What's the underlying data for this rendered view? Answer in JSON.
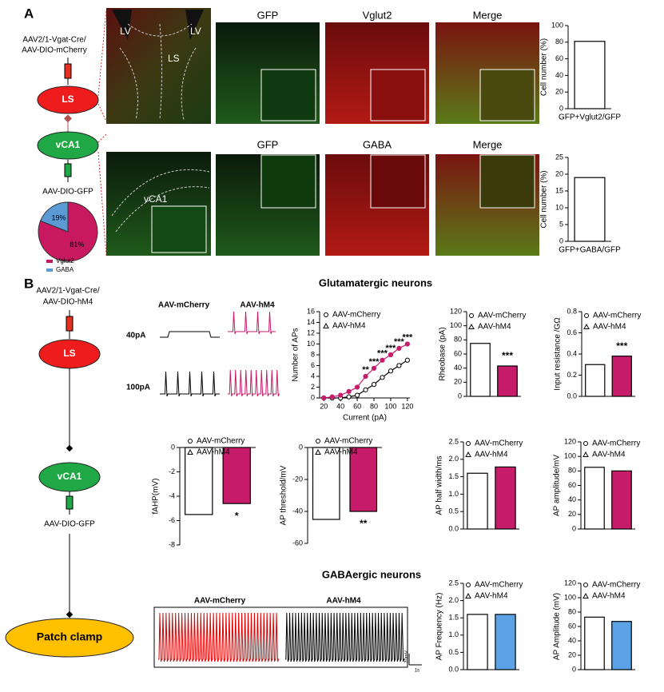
{
  "panel_a": {
    "label": "A",
    "vector": [
      "AAV2/1-Vgat-Cre/",
      "AAV-DIO-mCherry"
    ],
    "target": "LS",
    "source": "vCA1",
    "reporter": "AAV-DIO-GFP",
    "overview_labels": [
      "LV",
      "LV",
      "LS"
    ],
    "row1": [
      "GFP",
      "Vglut2",
      "Merge"
    ],
    "row2": [
      "GFP",
      "GABA",
      "Merge"
    ],
    "overview2_label": "vCA1"
  },
  "panel_b": {
    "label": "B",
    "vector": [
      "AAV2/1-Vgat-Cre/",
      "AAV-DIO-hM4"
    ],
    "target": "LS",
    "source": "vCA1",
    "reporter": "AAV-DIO-GFP",
    "recording": "Patch clamp",
    "glutamatergic_title": "Glutamatergic neurons",
    "gaba_title": "GABAergic neurons",
    "trace_groups": [
      "AAV-mCherry",
      "AAV-hM4"
    ],
    "currents": [
      "40pA",
      "100pA"
    ],
    "gaba_traces": [
      "AAV-mCherry",
      "AAV-hM4"
    ],
    "scale_bars": [
      "20mV",
      "1s"
    ]
  },
  "chart_data": [
    {
      "type": "bar",
      "ylabel": "Cell number (%)",
      "categories": [
        "GFP+Vglut2/GFP"
      ],
      "values": [
        81
      ],
      "color": "#ffffff",
      "ylim": [
        0,
        100
      ],
      "yticks": [
        0,
        20,
        40,
        60,
        80,
        100
      ]
    },
    {
      "type": "bar",
      "ylabel": "Cell number (%)",
      "categories": [
        "GFP+GABA/GFP"
      ],
      "values": [
        19
      ],
      "color": "#ffffff",
      "ylim": [
        0,
        25
      ],
      "yticks": [
        0,
        5,
        10,
        15,
        20,
        25
      ]
    },
    {
      "type": "pie",
      "categories": [
        "Vglut2",
        "GABA"
      ],
      "values": [
        81,
        19
      ],
      "value_labels": [
        "81%",
        "19%"
      ],
      "colors": [
        "#c8185f",
        "#5b9bd5"
      ]
    },
    {
      "type": "line",
      "xlabel": "Current (pA)",
      "ylabel": "Number of APs",
      "x": [
        20,
        30,
        40,
        50,
        60,
        70,
        80,
        90,
        100,
        110,
        120
      ],
      "series": [
        {
          "name": "AAV-mCherry",
          "color": "#000000",
          "values": [
            0,
            0,
            0,
            0.2,
            0.5,
            1.5,
            2.5,
            3.8,
            5,
            6,
            7
          ]
        },
        {
          "name": "AAV-hM4",
          "color": "#c71c6a",
          "values": [
            0,
            0.2,
            0.5,
            1.2,
            2,
            4,
            5.5,
            7,
            8,
            9.2,
            10
          ]
        }
      ],
      "significance": [
        null,
        null,
        null,
        null,
        null,
        "**",
        "***",
        "***",
        "***",
        "***",
        "***"
      ],
      "xlim": [
        15,
        123
      ],
      "xticks": [
        20,
        40,
        60,
        80,
        100,
        120
      ],
      "ylim": [
        0,
        16
      ],
      "yticks": [
        0,
        2,
        4,
        6,
        8,
        10,
        12,
        14,
        16
      ]
    },
    {
      "type": "bar",
      "ylabel": "Rheobase (pA)",
      "series": [
        {
          "name": "AAV-mCherry",
          "color": "#ffffff",
          "values": [
            75
          ]
        },
        {
          "name": "AAV-hM4",
          "color": "#c71c6a",
          "values": [
            43
          ],
          "significance": "***"
        }
      ],
      "ylim": [
        0,
        120
      ],
      "yticks": [
        0,
        20,
        40,
        60,
        80,
        100,
        120
      ]
    },
    {
      "type": "bar",
      "ylabel": "Input resistance /GΩ",
      "series": [
        {
          "name": "AAV-mCherry",
          "color": "#ffffff",
          "values": [
            0.3
          ]
        },
        {
          "name": "AAV-hM4",
          "color": "#c71c6a",
          "values": [
            0.38
          ],
          "significance": "***"
        }
      ],
      "ylim": [
        0,
        0.8
      ],
      "yticks": [
        {
          "value": 0,
          "label": "0.0"
        },
        0.2,
        0.4,
        0.6,
        0.8
      ]
    },
    {
      "type": "bar",
      "ylabel": "fAHP(mV)",
      "series": [
        {
          "name": "AAV-mCherry",
          "color": "#ffffff",
          "values": [
            -5.5
          ]
        },
        {
          "name": "AAV-hM4",
          "color": "#c71c6a",
          "values": [
            -4.6
          ],
          "significance": "*"
        }
      ],
      "ylim": [
        -8,
        0
      ],
      "yticks": [
        0,
        -2,
        -4,
        -6,
        -8
      ]
    },
    {
      "type": "bar",
      "ylabel": "AP threshold/mV",
      "series": [
        {
          "name": "AAV-mCherry",
          "color": "#ffffff",
          "values": [
            -45
          ]
        },
        {
          "name": "AAV-hM4",
          "color": "#c71c6a",
          "values": [
            -40
          ],
          "significance": "**"
        }
      ],
      "ylim": [
        -60,
        0
      ],
      "yticks": [
        0,
        -20,
        -40,
        -60
      ]
    },
    {
      "type": "bar",
      "ylabel": "AP half width/ms",
      "series": [
        {
          "name": "AAV-mCherry",
          "color": "#ffffff",
          "values": [
            1.6
          ]
        },
        {
          "name": "AAV-hM4",
          "color": "#c71c6a",
          "values": [
            1.78
          ]
        }
      ],
      "ylim": [
        0,
        2.5
      ],
      "yticks": [
        {
          "value": 0,
          "label": "0.0"
        },
        0.5,
        {
          "value": 1,
          "label": "1.0"
        },
        1.5,
        {
          "value": 2,
          "label": "2.0"
        },
        2.5
      ]
    },
    {
      "type": "bar",
      "ylabel": "AP amplitude/mV",
      "series": [
        {
          "name": "AAV-mCherry",
          "color": "#ffffff",
          "values": [
            85
          ]
        },
        {
          "name": "AAV-hM4",
          "color": "#c71c6a",
          "values": [
            80
          ]
        }
      ],
      "ylim": [
        0,
        120
      ],
      "yticks": [
        0,
        20,
        40,
        60,
        80,
        100,
        120
      ]
    },
    {
      "type": "bar",
      "ylabel": "AP Frequency (Hz)",
      "series": [
        {
          "name": "AAV-mCherry",
          "color": "#ffffff",
          "values": [
            1.6
          ]
        },
        {
          "name": "AAV-hM4",
          "color": "#5ba3e6",
          "values": [
            1.6
          ]
        }
      ],
      "ylim": [
        0,
        2.5
      ],
      "yticks": [
        {
          "value": 0,
          "label": "0.0"
        },
        0.5,
        {
          "value": 1,
          "label": "1.0"
        },
        1.5,
        {
          "value": 2,
          "label": "2.0"
        },
        2.5
      ]
    },
    {
      "type": "bar",
      "ylabel": "AP Amplitude (mV)",
      "series": [
        {
          "name": "AAV-mCherry",
          "color": "#ffffff",
          "values": [
            73
          ]
        },
        {
          "name": "AAV-hM4",
          "color": "#5ba3e6",
          "values": [
            67
          ]
        }
      ],
      "ylim": [
        0,
        120
      ],
      "yticks": [
        0,
        20,
        40,
        60,
        80,
        100,
        120
      ]
    }
  ]
}
